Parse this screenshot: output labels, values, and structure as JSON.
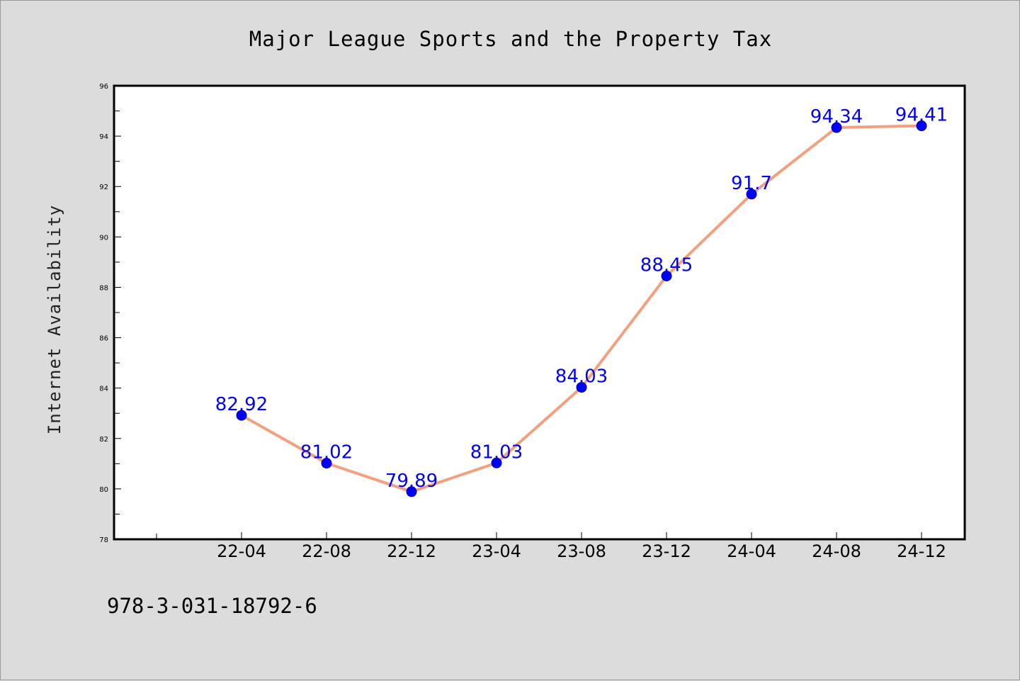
{
  "chart_data": {
    "type": "line",
    "title": "Major League Sports and the Property Tax",
    "xlabel": "",
    "ylabel": "Internet Availability",
    "categories": [
      "22-04",
      "22-08",
      "22-12",
      "23-04",
      "23-08",
      "23-12",
      "24-04",
      "24-08",
      "24-12"
    ],
    "series": [
      {
        "values": [
          82.92,
          81.02,
          79.89,
          81.03,
          84.03,
          88.45,
          91.7,
          94.34,
          94.41
        ],
        "data_labels": [
          "82.92",
          "81.02",
          "79.89",
          "81.03",
          "84.03",
          "88.45",
          "91.7",
          "94.34",
          "94.41"
        ]
      }
    ],
    "ylim": [
      78,
      96
    ],
    "yticks": [
      "78",
      "80",
      "82",
      "84",
      "86",
      "88",
      "90",
      "92",
      "94",
      "96"
    ],
    "grid": false,
    "legend": "none",
    "colors": {
      "line": "#f4a07f",
      "marker": "#0000ff",
      "label": "#0000ff",
      "background": "#dcdcdc",
      "plot_background": "#ffffff"
    }
  },
  "footer": {
    "isbn": "978-3-031-18792-6"
  }
}
